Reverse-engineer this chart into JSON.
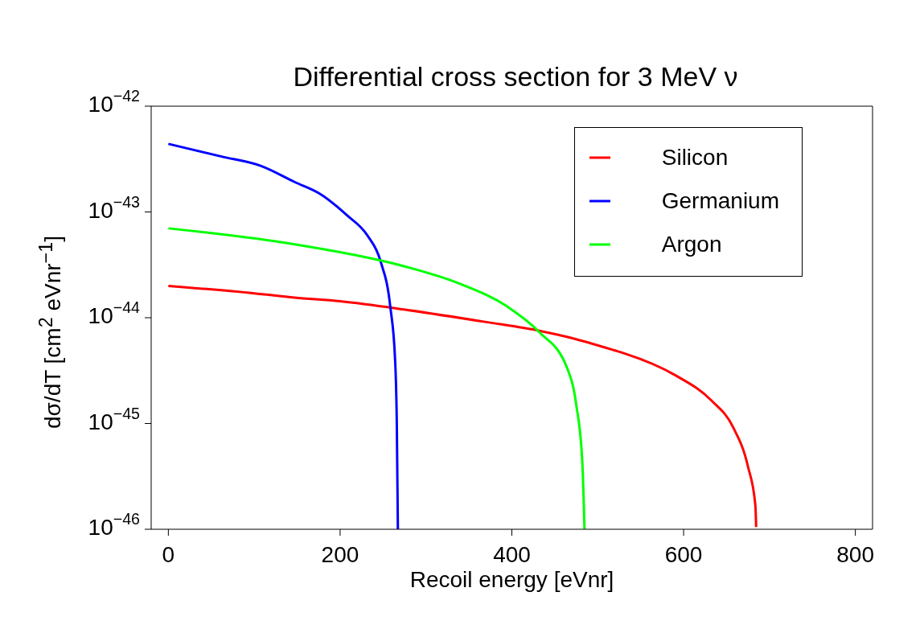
{
  "chart_data": {
    "type": "line",
    "title": "Differential cross section for 3 MeV ν",
    "xlabel": "Recoil energy [eVnr]",
    "ylabel": "dσ/dT [cm$^{2}$ eVnr$^{−1}$]",
    "xlim": [
      -20,
      820
    ],
    "xticks": [
      0,
      200,
      400,
      600,
      800
    ],
    "ylim": [
      1e-46,
      1e-42
    ],
    "yticks": [
      {
        "value": 1e-42,
        "label": "10$^{−42}$"
      },
      {
        "value": 1e-43,
        "label": "10$^{−43}$"
      },
      {
        "value": 1e-44,
        "label": "10$^{−44}$"
      },
      {
        "value": 1e-45,
        "label": "10$^{−45}$"
      },
      {
        "value": 1e-46,
        "label": "10$^{−46}$"
      }
    ],
    "log": "y",
    "grid": false,
    "legend": "top right",
    "marker": "none",
    "line_style": "solid",
    "series": [
      {
        "name": "Silicon",
        "color": "#ff0000",
        "x": [
          0,
          100,
          147,
          200,
          276,
          370,
          433,
          464,
          520,
          531,
          591,
          632,
          658,
          675,
          683.5,
          684.5
        ],
        "values": [
          2e-44,
          1.7e-44,
          1.55e-44,
          1.43e-44,
          1.19e-44,
          9.1e-45,
          7.5e-45,
          6.6e-45,
          4.9e-45,
          4.6e-45,
          2.84e-45,
          1.66e-45,
          9.1e-46,
          3.9e-46,
          1.7e-46,
          1.05e-46
        ]
      },
      {
        "name": "Germanium",
        "color": "#0000ff",
        "x": [
          0,
          62,
          108,
          147,
          178,
          208,
          232,
          247,
          258.5,
          264,
          266,
          267.3
        ],
        "values": [
          4.4e-43,
          3.34e-43,
          2.72e-43,
          1.92e-43,
          1.46e-43,
          9.3e-44,
          5.96e-44,
          3.44e-44,
          1.26e-44,
          4.05e-45,
          1.02e-45,
          1e-46
        ]
      },
      {
        "name": "Argon",
        "color": "#00ff00",
        "x": [
          0,
          147,
          247,
          276,
          339,
          395,
          432,
          464,
          475,
          482,
          484.6
        ],
        "values": [
          7e-44,
          4.95e-44,
          3.48e-44,
          3.04e-44,
          2.1e-44,
          1.27e-44,
          7.3e-45,
          3.4e-45,
          1.5e-45,
          4.4e-46,
          1e-46
        ]
      }
    ]
  }
}
